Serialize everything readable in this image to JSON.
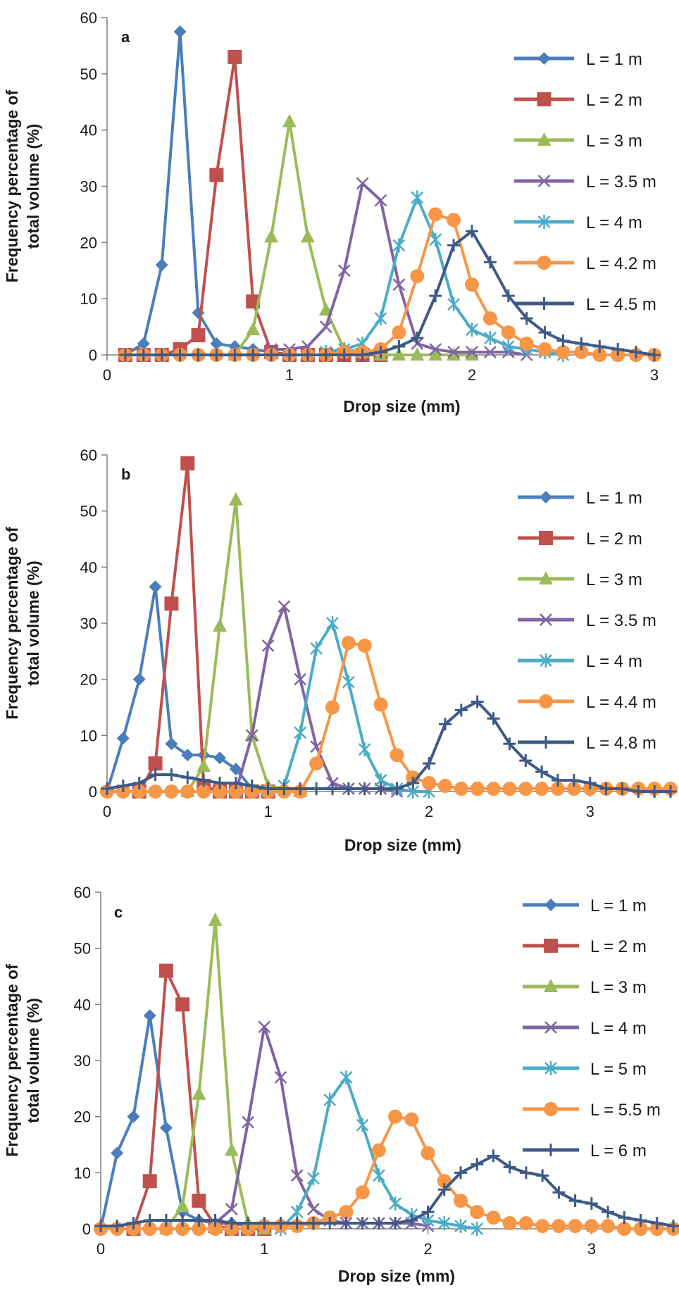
{
  "figure": {
    "ylabel_line1": "Frequency percentage of",
    "ylabel_line2": "total volume (%)"
  },
  "chart_data": [
    {
      "type": "line",
      "panel_label": "a",
      "xlabel": "Drop size (mm)",
      "xlim": [
        0,
        3
      ],
      "ylim": [
        0,
        60
      ],
      "xticks": [
        0,
        1,
        2,
        3
      ],
      "yticks": [
        0,
        10,
        20,
        30,
        40,
        50,
        60
      ],
      "legend_placement": "right",
      "series": [
        {
          "name": "L = 1 m",
          "color": "#4a7ebb",
          "marker": "diamond",
          "x": [
            0.1,
            0.2,
            0.3,
            0.4,
            0.5,
            0.6,
            0.7,
            0.8,
            0.9,
            1.0
          ],
          "y": [
            0,
            2,
            16,
            57.5,
            7.5,
            2,
            1.5,
            1,
            0.5,
            0
          ]
        },
        {
          "name": "L = 2 m",
          "color": "#c0504d",
          "marker": "square",
          "x": [
            0.1,
            0.2,
            0.3,
            0.4,
            0.5,
            0.6,
            0.7,
            0.8,
            0.9,
            1.0,
            1.1,
            1.2,
            1.3,
            1.4,
            1.5
          ],
          "y": [
            0,
            0,
            0,
            1,
            3.5,
            32,
            53,
            9.5,
            0.5,
            0,
            0,
            0,
            0,
            0,
            0
          ]
        },
        {
          "name": "L = 3 m",
          "color": "#9bbb59",
          "marker": "triangle",
          "x": [
            0.7,
            0.8,
            0.9,
            1.0,
            1.1,
            1.2,
            1.3,
            1.4,
            1.5,
            1.6,
            1.7,
            1.8,
            1.9,
            2.0
          ],
          "y": [
            0,
            4.5,
            21,
            41.5,
            21,
            8,
            1,
            0.5,
            0,
            0,
            0,
            0,
            0,
            0
          ]
        },
        {
          "name": "L = 3.5 m",
          "color": "#8064a2",
          "marker": "x",
          "x": [
            0.9,
            1.0,
            1.1,
            1.2,
            1.3,
            1.4,
            1.5,
            1.6,
            1.7,
            1.8,
            1.9,
            2.0,
            2.1,
            2.2,
            2.3
          ],
          "y": [
            1,
            1,
            1.5,
            5,
            15,
            30.5,
            27.5,
            12.5,
            2,
            1,
            0.5,
            0.5,
            0.5,
            0.5,
            0
          ]
        },
        {
          "name": "L = 4 m",
          "color": "#4bacc6",
          "marker": "asterisk",
          "x": [
            1.2,
            1.3,
            1.4,
            1.5,
            1.6,
            1.7,
            1.8,
            1.9,
            2.0,
            2.1,
            2.2,
            2.3,
            2.4,
            2.5
          ],
          "y": [
            0.5,
            1,
            2,
            6.5,
            19.5,
            28,
            20.5,
            9,
            4.5,
            3,
            1.5,
            1,
            0.5,
            0
          ]
        },
        {
          "name": "L = 4.2 m",
          "color": "#f79646",
          "marker": "circle",
          "x": [
            0.1,
            0.2,
            0.3,
            0.4,
            0.5,
            0.6,
            0.7,
            0.8,
            0.9,
            1.0,
            1.1,
            1.2,
            1.3,
            1.4,
            1.5,
            1.6,
            1.7,
            1.8,
            1.9,
            2.0,
            2.1,
            2.2,
            2.3,
            2.4,
            2.5,
            2.6,
            2.7,
            2.8,
            2.9,
            3.0
          ],
          "y": [
            0,
            0,
            0,
            0,
            0,
            0,
            0,
            0,
            0,
            0,
            0,
            0,
            0.5,
            0.5,
            1,
            4,
            14,
            25,
            24,
            12.5,
            6.5,
            4,
            2,
            1,
            0.5,
            0.5,
            0,
            0,
            0,
            0
          ]
        },
        {
          "name": "L = 4.5 m",
          "color": "#3d5a87",
          "marker": "plus",
          "x": [
            0.1,
            0.2,
            0.3,
            0.4,
            0.5,
            0.6,
            0.7,
            0.8,
            0.9,
            1.0,
            1.1,
            1.2,
            1.3,
            1.4,
            1.5,
            1.6,
            1.7,
            1.8,
            1.9,
            2.0,
            2.1,
            2.2,
            2.3,
            2.4,
            2.5,
            2.6,
            2.7,
            2.8,
            2.9,
            3.0
          ],
          "y": [
            0,
            0,
            0,
            0,
            0,
            0,
            0,
            0,
            0,
            0,
            0,
            0,
            0,
            0,
            0.5,
            1.5,
            3,
            10.5,
            19.5,
            22,
            16.5,
            10.5,
            6.5,
            4,
            2.5,
            2,
            1.5,
            1,
            0.5,
            0
          ]
        }
      ]
    },
    {
      "type": "line",
      "panel_label": "b",
      "xlabel": "Drop size (mm)",
      "xlim": [
        0,
        3.5
      ],
      "ylim": [
        0,
        60
      ],
      "xticks": [
        0,
        1,
        2,
        3
      ],
      "yticks": [
        0,
        10,
        20,
        30,
        40,
        50,
        60
      ],
      "legend_placement": "right",
      "series": [
        {
          "name": "L = 1 m",
          "color": "#4a7ebb",
          "marker": "diamond",
          "x": [
            0.0,
            0.1,
            0.2,
            0.3,
            0.4,
            0.5,
            0.6,
            0.7,
            0.8,
            0.9,
            1.0
          ],
          "y": [
            0,
            9.5,
            20,
            36.5,
            8.5,
            6.5,
            6.5,
            6,
            4,
            0.5,
            0
          ]
        },
        {
          "name": "L = 2 m",
          "color": "#c0504d",
          "marker": "square",
          "x": [
            0.2,
            0.3,
            0.4,
            0.5,
            0.6,
            0.7,
            0.8,
            0.9,
            1.0
          ],
          "y": [
            0,
            5,
            33.5,
            58.5,
            1,
            0,
            0,
            0,
            0
          ]
        },
        {
          "name": "L = 3 m",
          "color": "#9bbb59",
          "marker": "triangle",
          "x": [
            0.5,
            0.6,
            0.7,
            0.8,
            0.9,
            1.0,
            1.1,
            1.2
          ],
          "y": [
            0,
            4.5,
            29.5,
            52,
            10,
            1,
            0.5,
            0
          ]
        },
        {
          "name": "L = 3.5 m",
          "color": "#8064a2",
          "marker": "x",
          "x": [
            0.8,
            0.9,
            1.0,
            1.1,
            1.2,
            1.3,
            1.4,
            1.5,
            1.6,
            1.7,
            1.8
          ],
          "y": [
            0,
            10,
            26,
            33,
            20,
            8,
            1.5,
            0.5,
            0.5,
            0.5,
            0
          ]
        },
        {
          "name": "L = 4 m",
          "color": "#4bacc6",
          "marker": "asterisk",
          "x": [
            1.0,
            1.1,
            1.2,
            1.3,
            1.4,
            1.5,
            1.6,
            1.7,
            1.8,
            1.9,
            2.0
          ],
          "y": [
            0,
            1,
            10.5,
            25.5,
            30,
            19.5,
            7.5,
            2,
            0.5,
            0,
            0
          ]
        },
        {
          "name": "L = 4.4 m",
          "color": "#f79646",
          "marker": "circle",
          "x": [
            0.0,
            0.1,
            0.2,
            0.3,
            0.4,
            0.5,
            0.6,
            0.7,
            0.8,
            0.9,
            1.0,
            1.1,
            1.2,
            1.3,
            1.4,
            1.5,
            1.6,
            1.7,
            1.8,
            1.9,
            2.0,
            2.1,
            2.2,
            2.3,
            2.4,
            2.5,
            2.6,
            2.7,
            2.8,
            2.9,
            3.0,
            3.1,
            3.2,
            3.3,
            3.4,
            3.5
          ],
          "y": [
            0,
            0,
            0,
            0,
            0,
            0,
            0,
            0,
            0,
            0,
            0,
            0,
            0,
            5,
            15,
            26.5,
            26,
            15.5,
            6.5,
            2.5,
            1.5,
            1,
            0.5,
            0.5,
            0.5,
            0.5,
            0.5,
            0.5,
            0.5,
            0.5,
            0.5,
            0.5,
            0.5,
            0.5,
            0.5,
            0.5
          ]
        },
        {
          "name": "L = 4.8 m",
          "color": "#3d5a87",
          "marker": "plus",
          "x": [
            0.0,
            0.1,
            0.2,
            0.3,
            0.4,
            0.5,
            0.6,
            0.7,
            0.8,
            0.9,
            1.0,
            1.1,
            1.2,
            1.3,
            1.4,
            1.5,
            1.6,
            1.7,
            1.8,
            1.9,
            2.0,
            2.1,
            2.2,
            2.3,
            2.4,
            2.5,
            2.6,
            2.7,
            2.8,
            2.9,
            3.0,
            3.1,
            3.2,
            3.3,
            3.4,
            3.5
          ],
          "y": [
            0.5,
            1,
            1.5,
            3,
            3,
            2.5,
            2,
            1.5,
            1.5,
            1,
            0.5,
            0.5,
            0.5,
            0.5,
            0.5,
            0.5,
            0.5,
            0.5,
            0.5,
            1.5,
            5,
            12,
            14.5,
            16,
            13,
            8.5,
            5.5,
            3.5,
            2,
            2,
            1.5,
            0.5,
            0.5,
            0,
            0,
            0
          ]
        }
      ]
    },
    {
      "type": "line",
      "panel_label": "c",
      "xlabel": "Drop size (mm)",
      "xlim": [
        0,
        3.5
      ],
      "ylim": [
        0,
        60
      ],
      "xticks": [
        0,
        1,
        2,
        3
      ],
      "yticks": [
        0,
        10,
        20,
        30,
        40,
        50,
        60
      ],
      "legend_placement": "right",
      "series": [
        {
          "name": "L = 1 m",
          "color": "#4a7ebb",
          "marker": "diamond",
          "x": [
            0.0,
            0.1,
            0.2,
            0.3,
            0.4,
            0.5,
            0.6,
            0.7,
            0.8,
            0.9,
            1.0
          ],
          "y": [
            0,
            13.5,
            20,
            38,
            18,
            3,
            1.5,
            1,
            1,
            0.5,
            0
          ]
        },
        {
          "name": "L = 2 m",
          "color": "#c0504d",
          "marker": "square",
          "x": [
            0.2,
            0.3,
            0.4,
            0.5,
            0.6,
            0.7,
            0.8,
            0.9,
            1.0
          ],
          "y": [
            0,
            8.5,
            46,
            40,
            5,
            0.5,
            0,
            0,
            0
          ]
        },
        {
          "name": "L = 3 m",
          "color": "#9bbb59",
          "marker": "triangle",
          "x": [
            0.4,
            0.5,
            0.6,
            0.7,
            0.8,
            0.9,
            1.0
          ],
          "y": [
            0,
            4,
            24,
            55,
            14,
            1,
            0
          ]
        },
        {
          "name": "L = 4 m",
          "color": "#8064a2",
          "marker": "x",
          "x": [
            0.7,
            0.8,
            0.9,
            1.0,
            1.1,
            1.2,
            1.3,
            1.4,
            1.5,
            1.6,
            1.7,
            1.8,
            1.9,
            2.0
          ],
          "y": [
            1,
            3.5,
            19,
            36,
            27,
            9.5,
            3.5,
            1.5,
            1,
            1,
            1,
            1,
            1,
            0.5
          ]
        },
        {
          "name": "L = 5 m",
          "color": "#4bacc6",
          "marker": "asterisk",
          "x": [
            1.1,
            1.2,
            1.3,
            1.4,
            1.5,
            1.6,
            1.7,
            1.8,
            1.9,
            2.0,
            2.1,
            2.2,
            2.3
          ],
          "y": [
            0,
            3,
            9,
            23,
            27,
            18.5,
            9.5,
            4.5,
            2.5,
            1.5,
            1,
            0.5,
            0
          ]
        },
        {
          "name": "L = 5.5 m",
          "color": "#f79646",
          "marker": "circle",
          "x": [
            0.0,
            0.1,
            0.2,
            0.3,
            0.4,
            0.5,
            0.6,
            0.7,
            0.8,
            0.9,
            1.0,
            1.1,
            1.2,
            1.3,
            1.4,
            1.5,
            1.6,
            1.7,
            1.8,
            1.9,
            2.0,
            2.1,
            2.2,
            2.3,
            2.4,
            2.5,
            2.6,
            2.7,
            2.8,
            2.9,
            3.0,
            3.1,
            3.2,
            3.3,
            3.4,
            3.5
          ],
          "y": [
            0,
            0,
            0,
            0,
            0,
            0,
            0,
            0,
            0,
            0,
            0.5,
            0.5,
            0.5,
            1,
            2,
            3,
            6.5,
            14,
            20,
            19.5,
            13.5,
            8.5,
            5,
            3,
            2,
            1,
            1,
            0.5,
            0.5,
            0.5,
            0.5,
            0.5,
            0,
            0,
            0,
            0
          ]
        },
        {
          "name": "L = 6 m",
          "color": "#3d5a87",
          "marker": "plus",
          "x": [
            0.0,
            0.1,
            0.2,
            0.3,
            0.4,
            0.5,
            0.6,
            0.7,
            0.8,
            0.9,
            1.0,
            1.1,
            1.2,
            1.3,
            1.4,
            1.5,
            1.6,
            1.7,
            1.8,
            1.9,
            2.0,
            2.1,
            2.2,
            2.3,
            2.4,
            2.5,
            2.6,
            2.7,
            2.8,
            2.9,
            3.0,
            3.1,
            3.2,
            3.3,
            3.4,
            3.5
          ],
          "y": [
            0.5,
            0.5,
            1,
            1.5,
            1.5,
            1.5,
            1.5,
            1.5,
            1,
            1,
            1,
            1,
            1,
            1,
            1,
            1,
            1,
            1,
            1,
            1.5,
            3,
            7,
            10,
            11.5,
            13,
            11,
            10,
            9.5,
            6.5,
            5,
            4.5,
            3,
            2,
            1.5,
            1,
            0.5
          ]
        }
      ]
    }
  ]
}
